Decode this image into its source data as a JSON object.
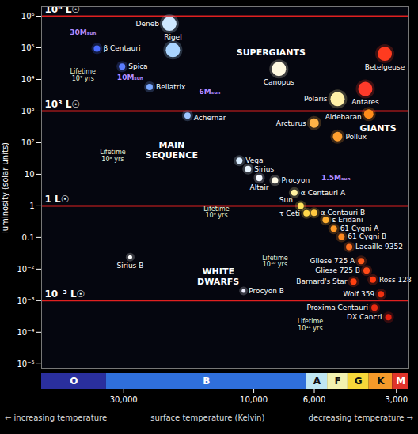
{
  "chart_data": {
    "type": "scatter",
    "log": true,
    "xlabel": "surface temperature (Kelvin)",
    "ylabel": "luminosity (solar units)",
    "xlim": [
      60000,
      2700
    ],
    "ylim": [
      7e-06,
      2000000
    ],
    "xticks": [
      {
        "value": 30000,
        "label": "30,000"
      },
      {
        "value": 10000,
        "label": "10,000"
      },
      {
        "value": 6000,
        "label": "6,000"
      },
      {
        "value": 3000,
        "label": "3,000"
      }
    ],
    "yticks": [
      {
        "value": 1000000,
        "label": "10⁶"
      },
      {
        "value": 100000,
        "label": "10⁵"
      },
      {
        "value": 10000,
        "label": "10⁴"
      },
      {
        "value": 1000,
        "label": "10³"
      },
      {
        "value": 100,
        "label": "10²"
      },
      10,
      1,
      0.1,
      {
        "value": 0.01,
        "label": "10⁻²"
      },
      {
        "value": 0.001,
        "label": "10⁻³"
      },
      {
        "value": 0.0001,
        "label": "10⁻⁴"
      },
      {
        "value": 1e-05,
        "label": "10⁻⁵"
      }
    ],
    "series": [
      {
        "name": "SUPERGIANTS",
        "name_position": [
          8650,
          72000
        ],
        "labels": [
          "Deneb",
          "Rigel",
          "Canopus",
          "Polaris",
          "Betelgeuse",
          "Antares"
        ],
        "x": [
          20400,
          19800,
          8090,
          4930,
          3310,
          3900
        ],
        "y": [
          577000,
          85000,
          21500,
          2400,
          64600,
          5000
        ],
        "colors": [
          "#cfe8ff",
          "#a9d4ff",
          "#fff8e0",
          "#fff1a8",
          "#ff3b1f",
          "#ff3a2a"
        ]
      },
      {
        "name": "GIANTS",
        "name_position": [
          3500,
          300
        ],
        "labels": [
          "Arcturus",
          "Pollux",
          "Aldebaran"
        ],
        "x": [
          6010,
          4930,
          3790
        ],
        "y": [
          416,
          155,
          800
        ],
        "colors": [
          "#ffb347",
          "#ffa030",
          "#ff8c1a"
        ]
      },
      {
        "name": "MAIN SEQUENCE",
        "name_position": [
          20000,
          60
        ],
        "labels": [
          "β Centauri",
          "Spica",
          "Bellatrix",
          "Achernar",
          "Vega",
          "Sirius",
          "Altair",
          "Procyon",
          "α Centauri A",
          "Sun",
          "τ Ceti",
          "α Centauri B",
          "ε Eridani",
          "61 Cygni A",
          "61 Cygni B",
          "Lacaille 9352",
          "Gliese 725 A",
          "Gliese 725 B",
          "Barnard's Star",
          "Ross 128",
          "Wolf 359",
          "Proxima Centauri",
          "DX Cancri"
        ],
        "x": [
          37600,
          30400,
          24100,
          17500,
          11300,
          10500,
          9550,
          8360,
          7100,
          6730,
          6410,
          6010,
          5450,
          5090,
          4770,
          4470,
          4040,
          3860,
          4310,
          3660,
          3420,
          3610,
          3210
        ],
        "y": [
          95000,
          25400,
          5780,
          720,
          27,
          14.7,
          7.6,
          6.4,
          2.6,
          1,
          0.58,
          0.6,
          0.36,
          0.19,
          0.105,
          0.05,
          0.018,
          0.009,
          0.004,
          0.0046,
          0.0016,
          0.0006,
          0.0003
        ],
        "colors": [
          "#4a6cff",
          "#5a7dff",
          "#7aa8ff",
          "#9cc4ff",
          "#d8ecff",
          "#e8f4ff",
          "#f4f8ff",
          "#fffbe8",
          "#fff2a0",
          "#ffe45c",
          "#ffd84a",
          "#ffc840",
          "#ffb030",
          "#ff9a28",
          "#ff8a20",
          "#ff7020",
          "#ff5a1a",
          "#ff4a18",
          "#ff4010",
          "#ff3a10",
          "#f03010",
          "#e82a10",
          "#e02010"
        ]
      },
      {
        "name": "WHITE DWARFS",
        "name_position": [
          13500,
          0.006
        ],
        "labels": [
          "Sirius B",
          "Procyon B"
        ],
        "x": [
          28400,
          10900
        ],
        "y": [
          0.024,
          0.00204
        ],
        "colors": [
          "#ffffff",
          "#f0f0ff"
        ]
      }
    ],
    "reference_lines": [
      {
        "value": 1000000,
        "label": "10⁶ L☉"
      },
      {
        "value": 1000,
        "label": "10³ L☉"
      },
      {
        "value": 1,
        "label": "1 L☉"
      },
      {
        "value": 0.001,
        "label": "10⁻³ L☉"
      }
    ],
    "lifetime_labels": [
      {
        "text": "Lifetime\n10⁷ yrs",
        "x": 42300,
        "y": 13900
      },
      {
        "text": "Lifetime\n10⁸ yrs",
        "x": 32900,
        "y": 39
      },
      {
        "text": "Lifetime\n10⁹ yrs",
        "x": 13700,
        "y": 0.64
      },
      {
        "text": "Lifetime\n10¹⁰ yrs",
        "x": 8360,
        "y": 0.018
      },
      {
        "text": "Lifetime\n10¹¹ yrs",
        "x": 6210,
        "y": 0.000173
      }
    ],
    "mass_labels": [
      {
        "text": "30Mₛᵤₙ",
        "x": 42300,
        "y": 300000
      },
      {
        "text": "10Mₛᵤₙ",
        "x": 28400,
        "y": 11200
      },
      {
        "text": "6Mₛᵤₙ",
        "x": 14500,
        "y": 4000
      },
      {
        "text": "1.5Mₛᵤₙ",
        "x": 5000,
        "y": 7.6
      }
    ],
    "spectral_classes": {
      "labels": [
        "O",
        "B",
        "A",
        "F",
        "G",
        "K",
        "M"
      ],
      "bins": [
        60000,
        34700,
        6410,
        5370,
        4520,
        3780,
        3100,
        2700
      ],
      "colors": [
        "#2a2f9e",
        "#2f6fdb",
        "#bfe6f2",
        "#f2f2b0",
        "#f7d83a",
        "#f59a2a",
        "#e0342a"
      ]
    },
    "direction_labels": {
      "left": "← increasing temperature",
      "right": "decreasing temperature →"
    }
  }
}
